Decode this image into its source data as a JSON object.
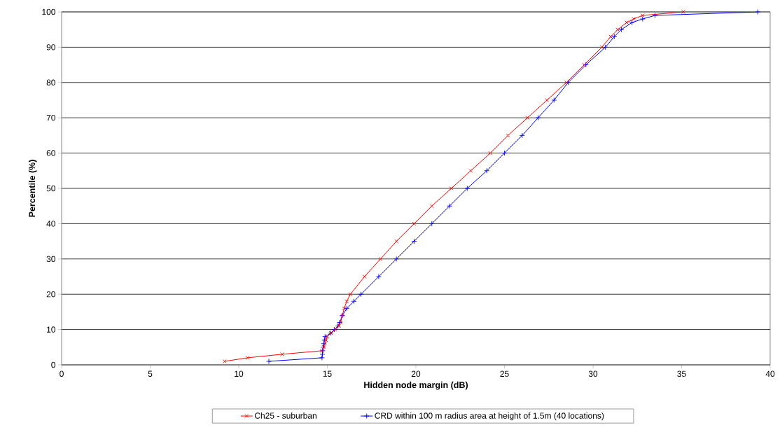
{
  "chart_data": {
    "type": "line",
    "xlabel": "Hidden node margin (dB)",
    "ylabel": "Percentile (%)",
    "xlim": [
      0,
      40
    ],
    "ylim": [
      0,
      100
    ],
    "xticks": [
      0,
      5,
      10,
      15,
      20,
      25,
      30,
      35,
      40
    ],
    "yticks": [
      0,
      10,
      20,
      30,
      40,
      50,
      60,
      70,
      80,
      90,
      100
    ],
    "grid": "y",
    "legend": "bottom",
    "line_style": "solid",
    "series": [
      {
        "name": "Ch25 - suburban",
        "color": "#ff0000",
        "marker": "cross",
        "x": [
          9.2,
          10.5,
          12.45,
          14.7,
          14.8,
          14.86,
          14.93,
          15.0,
          15.2,
          15.45,
          15.65,
          15.75,
          15.85,
          15.95,
          16.1,
          16.3,
          17.1,
          18.0,
          18.9,
          19.9,
          20.9,
          22.0,
          23.1,
          24.2,
          25.2,
          26.3,
          27.4,
          28.5,
          29.5,
          30.5,
          31.0,
          31.4,
          31.9,
          32.3,
          32.8,
          35.1
        ],
        "values": [
          1,
          2,
          3,
          4,
          5,
          6,
          7,
          8,
          9,
          10,
          11,
          12,
          14,
          16,
          18,
          20,
          25,
          30,
          35,
          40,
          45,
          50,
          55,
          60,
          65,
          70,
          75,
          80,
          85,
          90,
          93,
          95,
          97,
          98,
          99,
          100
        ]
      },
      {
        "name": "CRD within 100 m radius area at height of 1.5m (40 locations)",
        "color": "#0000ff",
        "marker": "plus",
        "x": [
          11.7,
          14.7,
          14.72,
          14.74,
          14.77,
          14.8,
          14.83,
          14.87,
          15.2,
          15.4,
          15.6,
          15.7,
          15.85,
          16.1,
          16.5,
          16.9,
          17.9,
          18.9,
          19.9,
          20.9,
          21.9,
          22.9,
          24.0,
          25.0,
          26.0,
          26.9,
          27.8,
          28.6,
          29.6,
          30.7,
          31.2,
          31.6,
          32.2,
          32.8,
          33.5,
          39.3
        ],
        "values": [
          1,
          2,
          3,
          4,
          5,
          6,
          7,
          8,
          9,
          10,
          11,
          12,
          14,
          16,
          18,
          20,
          25,
          30,
          35,
          40,
          45,
          50,
          55,
          60,
          65,
          70,
          75,
          80,
          85,
          90,
          93,
          95,
          97,
          98,
          99,
          100
        ]
      }
    ]
  }
}
